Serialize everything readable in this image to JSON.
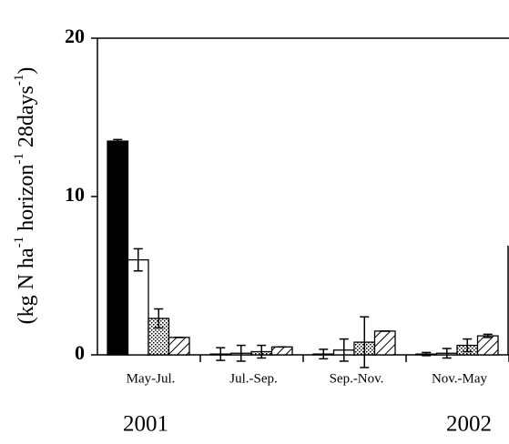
{
  "chart_data": {
    "type": "bar",
    "y_label_parts": [
      "(kg N ha",
      "-1",
      " horizon",
      "-1",
      " 28days",
      "-1",
      ")"
    ],
    "categories": [
      "May-Jul.",
      "Jul.-Sep.",
      "Sep.-Nov.",
      "Nov.-May"
    ],
    "annotations": [
      "2001",
      "2002"
    ],
    "series": [
      {
        "color": "#000000",
        "pattern": "solid",
        "values": [
          13.5,
          0.05,
          0.05,
          0.05
        ],
        "errors": [
          0.1,
          0.4,
          0.3,
          0.1
        ]
      },
      {
        "color": "#ffffff",
        "pattern": "solid",
        "values": [
          6.0,
          0.1,
          0.3,
          0.1
        ],
        "errors": [
          0.7,
          0.5,
          0.7,
          0.3
        ]
      },
      {
        "color": "#000000",
        "pattern": "dots",
        "values": [
          2.3,
          0.2,
          0.8,
          0.6
        ],
        "errors": [
          0.6,
          0.4,
          1.6,
          0.4
        ]
      },
      {
        "color": "#000000",
        "pattern": "hatch",
        "values": [
          1.1,
          0.5,
          1.5,
          1.2
        ],
        "errors": [
          0,
          0,
          0,
          0.1
        ]
      }
    ],
    "ylim": [
      0,
      20
    ],
    "yticks": [
      0,
      10,
      20
    ]
  }
}
